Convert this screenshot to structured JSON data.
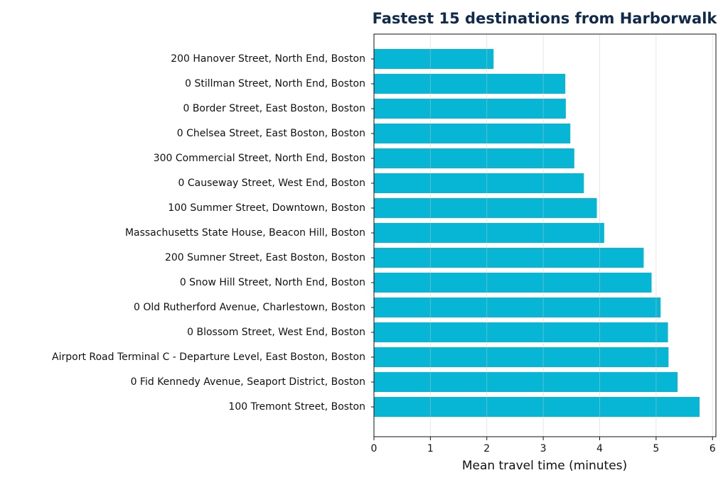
{
  "chart_data": {
    "type": "barh",
    "title": "Fastest 15 destinations from Harborwalk",
    "x_label": "Mean travel time (minutes)",
    "categories": [
      "200 Hanover Street, North End, Boston",
      "0 Stillman Street, North End, Boston",
      "0 Border Street, East Boston, Boston",
      "0 Chelsea Street, East Boston, Boston",
      "300 Commercial Street, North End, Boston",
      "0 Causeway Street, West End, Boston",
      "100 Summer Street, Downtown, Boston",
      "Massachusetts State House, Beacon Hill, Boston",
      "200 Sumner Street, East Boston, Boston",
      "0 Snow Hill Street, North End, Boston",
      "0 Old Rutherford Avenue, Charlestown, Boston",
      "0 Blossom Street, West End, Boston",
      "Airport Road Terminal C - Departure Level, East Boston, Boston",
      "0 Fid Kennedy Avenue, Seaport District, Boston",
      "100 Tremont Street, Boston"
    ],
    "values": [
      2.12,
      3.39,
      3.4,
      3.48,
      3.55,
      3.72,
      3.95,
      4.08,
      4.78,
      4.92,
      5.08,
      5.21,
      5.22,
      5.38,
      5.77
    ],
    "color": "#06b6d4",
    "xlim": [
      0,
      6.06
    ],
    "xticks": [
      0,
      1,
      2,
      3,
      4,
      5,
      6
    ],
    "grid": true
  }
}
